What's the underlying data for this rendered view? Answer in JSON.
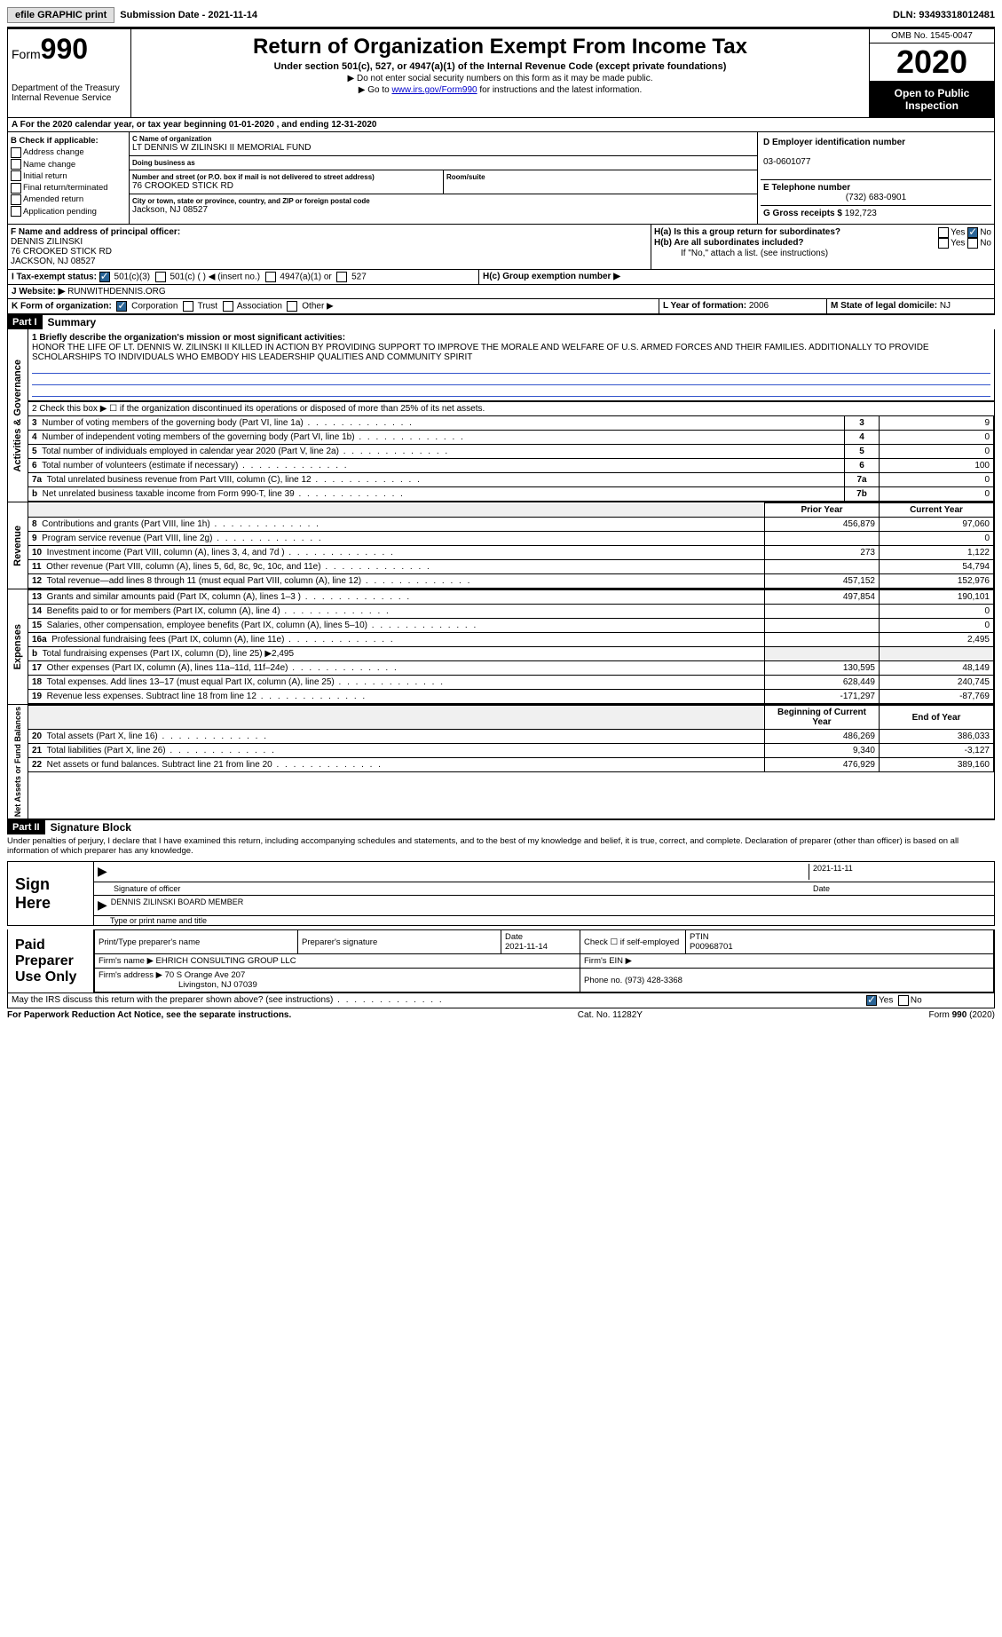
{
  "topbar": {
    "efile": "efile GRAPHIC print",
    "submission_label": "Submission Date - ",
    "submission_date": "2021-11-14",
    "dln_label": "DLN: ",
    "dln": "93493318012481"
  },
  "header": {
    "form_word": "Form",
    "form_num": "990",
    "dept": "Department of the Treasury Internal Revenue Service",
    "title": "Return of Organization Exempt From Income Tax",
    "subtitle": "Under section 501(c), 527, or 4947(a)(1) of the Internal Revenue Code (except private foundations)",
    "arrow1": "▶ Do not enter social security numbers on this form as it may be made public.",
    "arrow2_pre": "▶ Go to ",
    "arrow2_link": "www.irs.gov/Form990",
    "arrow2_post": " for instructions and the latest information.",
    "omb": "OMB No. 1545-0047",
    "year": "2020",
    "inspect": "Open to Public Inspection"
  },
  "rowA": {
    "text": "A   For the 2020 calendar year, or tax year beginning 01-01-2020    , and ending 12-31-2020"
  },
  "colB": {
    "title": "B Check if applicable:",
    "items": [
      "Address change",
      "Name change",
      "Initial return",
      "Final return/terminated",
      "Amended return",
      "Application pending"
    ]
  },
  "colC": {
    "name_label": "C Name of organization",
    "name": "LT DENNIS W ZILINSKI II MEMORIAL FUND",
    "dba_label": "Doing business as",
    "dba": "",
    "street_label": "Number and street (or P.O. box if mail is not delivered to street address)",
    "street": "76 CROOKED STICK RD",
    "room_label": "Room/suite",
    "room": "",
    "city_label": "City or town, state or province, country, and ZIP or foreign postal code",
    "city": "Jackson, NJ  08527"
  },
  "colD": {
    "ein_label": "D Employer identification number",
    "ein": "03-0601077",
    "phone_label": "E Telephone number",
    "phone": "(732) 683-0901",
    "gross_label": "G Gross receipts $ ",
    "gross": "192,723"
  },
  "colF": {
    "label": "F  Name and address of principal officer:",
    "name": "DENNIS ZILINSKI",
    "street": "76 CROOKED STICK RD",
    "city": "JACKSON, NJ  08527"
  },
  "colH": {
    "ha": "H(a)  Is this a group return for subordinates?",
    "hb": "H(b)  Are all subordinates included?",
    "hb_note": "If \"No,\" attach a list. (see instructions)",
    "hc": "H(c)  Group exemption number ▶",
    "yes": "Yes",
    "no": "No"
  },
  "rowI": {
    "label": "I      Tax-exempt status:",
    "opts": [
      "501(c)(3)",
      "501(c) (   ) ◀ (insert no.)",
      "4947(a)(1) or",
      "527"
    ]
  },
  "rowJ": {
    "label": "J     Website: ▶ ",
    "value": "RUNWITHDENNIS.ORG"
  },
  "rowK": {
    "label": "K Form of organization:",
    "opts": [
      "Corporation",
      "Trust",
      "Association",
      "Other ▶"
    ],
    "L_label": "L Year of formation: ",
    "L_val": "2006",
    "M_label": "M State of legal domicile: ",
    "M_val": "NJ"
  },
  "part1": {
    "hdr": "Part I",
    "title": "Summary",
    "line1_label": "1   Briefly describe the organization's mission or most significant activities:",
    "mission": "HONOR THE LIFE OF LT. DENNIS W. ZILINSKI II KILLED IN ACTION BY PROVIDING SUPPORT TO IMPROVE THE MORALE AND WELFARE OF U.S. ARMED FORCES AND THEIR FAMILIES. ADDITIONALLY TO PROVIDE SCHOLARSHIPS TO INDIVIDUALS WHO EMBODY HIS LEADERSHIP QUALITIES AND COMMUNITY SPIRIT",
    "line2": "2   Check this box ▶ ☐ if the organization discontinued its operations or disposed of more than 25% of its net assets.",
    "gov_rows": [
      {
        "n": "3",
        "t": "Number of voting members of the governing body (Part VI, line 1a)",
        "box": "3",
        "v": "9"
      },
      {
        "n": "4",
        "t": "Number of independent voting members of the governing body (Part VI, line 1b)",
        "box": "4",
        "v": "0"
      },
      {
        "n": "5",
        "t": "Total number of individuals employed in calendar year 2020 (Part V, line 2a)",
        "box": "5",
        "v": "0"
      },
      {
        "n": "6",
        "t": "Total number of volunteers (estimate if necessary)",
        "box": "6",
        "v": "100"
      },
      {
        "n": "7a",
        "t": "Total unrelated business revenue from Part VIII, column (C), line 12",
        "box": "7a",
        "v": "0"
      },
      {
        "n": "b",
        "t": "Net unrelated business taxable income from Form 990-T, line 39",
        "box": "7b",
        "v": "0"
      }
    ],
    "prior_year": "Prior Year",
    "current_year": "Current Year",
    "revenue_rows": [
      {
        "n": "8",
        "t": "Contributions and grants (Part VIII, line 1h)",
        "p": "456,879",
        "c": "97,060"
      },
      {
        "n": "9",
        "t": "Program service revenue (Part VIII, line 2g)",
        "p": "",
        "c": "0"
      },
      {
        "n": "10",
        "t": "Investment income (Part VIII, column (A), lines 3, 4, and 7d )",
        "p": "273",
        "c": "1,122"
      },
      {
        "n": "11",
        "t": "Other revenue (Part VIII, column (A), lines 5, 6d, 8c, 9c, 10c, and 11e)",
        "p": "",
        "c": "54,794"
      },
      {
        "n": "12",
        "t": "Total revenue—add lines 8 through 11 (must equal Part VIII, column (A), line 12)",
        "p": "457,152",
        "c": "152,976"
      }
    ],
    "expense_rows": [
      {
        "n": "13",
        "t": "Grants and similar amounts paid (Part IX, column (A), lines 1–3 )",
        "p": "497,854",
        "c": "190,101"
      },
      {
        "n": "14",
        "t": "Benefits paid to or for members (Part IX, column (A), line 4)",
        "p": "",
        "c": "0"
      },
      {
        "n": "15",
        "t": "Salaries, other compensation, employee benefits (Part IX, column (A), lines 5–10)",
        "p": "",
        "c": "0"
      },
      {
        "n": "16a",
        "t": "Professional fundraising fees (Part IX, column (A), line 11e)",
        "p": "",
        "c": "2,495"
      },
      {
        "n": "b",
        "t": "Total fundraising expenses (Part IX, column (D), line 25) ▶2,495",
        "p": null,
        "c": null,
        "shade": true
      },
      {
        "n": "17",
        "t": "Other expenses (Part IX, column (A), lines 11a–11d, 11f–24e)",
        "p": "130,595",
        "c": "48,149"
      },
      {
        "n": "18",
        "t": "Total expenses. Add lines 13–17 (must equal Part IX, column (A), line 25)",
        "p": "628,449",
        "c": "240,745"
      },
      {
        "n": "19",
        "t": "Revenue less expenses. Subtract line 18 from line 12",
        "p": "-171,297",
        "c": "-87,769"
      }
    ],
    "begin_year": "Beginning of Current Year",
    "end_year": "End of Year",
    "net_rows": [
      {
        "n": "20",
        "t": "Total assets (Part X, line 16)",
        "p": "486,269",
        "c": "386,033"
      },
      {
        "n": "21",
        "t": "Total liabilities (Part X, line 26)",
        "p": "9,340",
        "c": "-3,127"
      },
      {
        "n": "22",
        "t": "Net assets or fund balances. Subtract line 21 from line 20",
        "p": "476,929",
        "c": "389,160"
      }
    ],
    "vlabels": {
      "gov": "Activities & Governance",
      "rev": "Revenue",
      "exp": "Expenses",
      "net": "Net Assets or Fund Balances"
    }
  },
  "part2": {
    "hdr": "Part II",
    "title": "Signature Block",
    "penalties": "Under penalties of perjury, I declare that I have examined this return, including accompanying schedules and statements, and to the best of my knowledge and belief, it is true, correct, and complete. Declaration of preparer (other than officer) is based on all information of which preparer has any knowledge.",
    "sign_here": "Sign Here",
    "sig_officer": "Signature of officer",
    "sig_date": "2021-11-11",
    "date_label": "Date",
    "officer_name": "DENNIS ZILINSKI  BOARD MEMBER",
    "type_name": "Type or print name and title",
    "paid": "Paid Preparer Use Only",
    "prep_name_label": "Print/Type preparer's name",
    "prep_sig_label": "Preparer's signature",
    "prep_date_label": "Date",
    "prep_date": "2021-11-14",
    "check_self": "Check ☐ if self-employed",
    "ptin_label": "PTIN",
    "ptin": "P00968701",
    "firm_name_label": "Firm's name    ▶ ",
    "firm_name": "EHRICH CONSULTING GROUP LLC",
    "firm_ein_label": "Firm's EIN ▶",
    "firm_addr_label": "Firm's address ▶ ",
    "firm_addr": "70 S Orange Ave 207",
    "firm_city": "Livingston, NJ  07039",
    "firm_phone_label": "Phone no. ",
    "firm_phone": "(973) 428-3368",
    "may_irs": "May the IRS discuss this return with the preparer shown above? (see instructions)"
  },
  "footer": {
    "left": "For Paperwork Reduction Act Notice, see the separate instructions.",
    "mid": "Cat. No. 11282Y",
    "right_pre": "Form ",
    "right_bold": "990",
    "right_post": " (2020)"
  }
}
